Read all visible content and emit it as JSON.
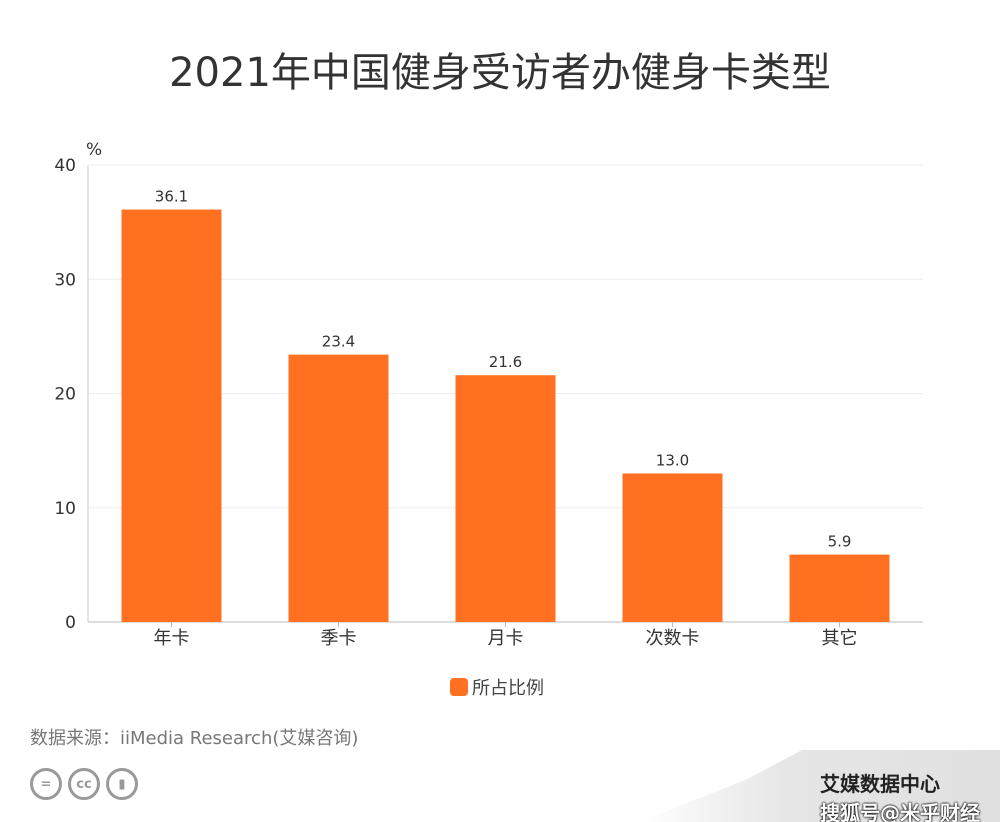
{
  "title": "2021年中国健身受访者办健身卡类型",
  "source": "数据来源：iiMedia Research(艾媒咨询)",
  "brand": "艾媒数据中心",
  "watermark": "搜狐号@米乎财经",
  "license_icons": [
    "cc-nd-icon",
    "cc-icon",
    "cc-by-icon"
  ],
  "license_labels": [
    "=",
    "cc",
    ""
  ],
  "colors": {
    "bar": "#ff7020"
  },
  "chart_data": {
    "type": "bar",
    "title": "2021年中国健身受访者办健身卡类型",
    "ylabel": "%",
    "xlabel": "",
    "categories": [
      "年卡",
      "季卡",
      "月卡",
      "次数卡",
      "其它"
    ],
    "series": [
      {
        "name": "所占比例",
        "values": [
          36.1,
          23.4,
          21.6,
          13.0,
          5.9
        ]
      }
    ],
    "value_labels": [
      "36.1",
      "23.4",
      "21.6",
      "13.0",
      "5.9"
    ],
    "ylim": [
      0,
      40
    ],
    "yticks": [
      0,
      10,
      20,
      30,
      40
    ],
    "grid": true,
    "legend": "bottom-center"
  }
}
